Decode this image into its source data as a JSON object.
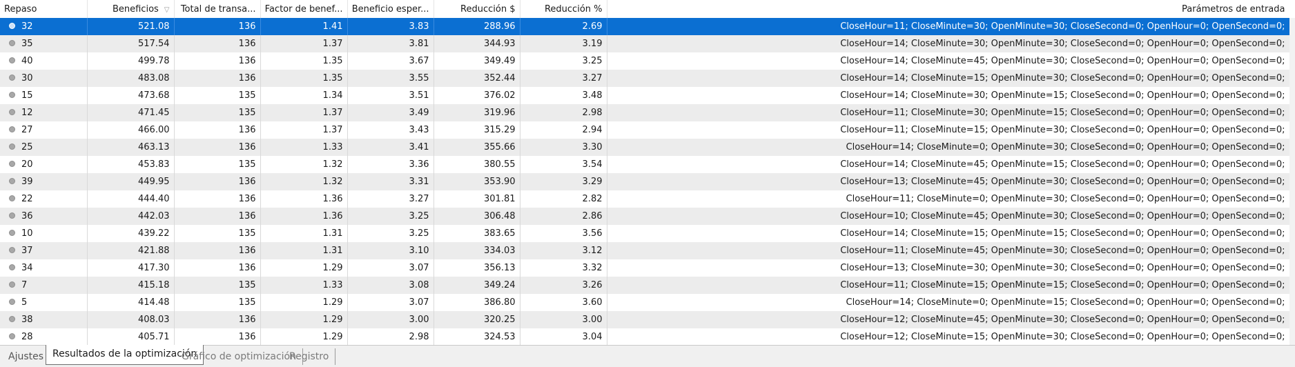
{
  "columns": [
    "Repaso",
    "Beneficios",
    "Total de transa...",
    "Factor de benef...",
    "Beneficio esper...",
    "Reducción $",
    "Reducción %",
    "Parámetros de entrada"
  ],
  "icons": {
    "sort": "sort-descending-icon",
    "row": "pass-dot-icon"
  },
  "colors": {
    "selected_row": "#0b6fd2",
    "alt_row": "#ececec"
  },
  "rows": [
    {
      "pass": "32",
      "profit": "521.08",
      "trades": "136",
      "pf": "1.41",
      "payoff": "3.83",
      "dd_abs": "288.96",
      "dd_pct": "2.69",
      "params": "CloseHour=11; CloseMinute=30; OpenMinute=30; CloseSecond=0; OpenHour=0; OpenSecond=0;",
      "selected": true
    },
    {
      "pass": "35",
      "profit": "517.54",
      "trades": "136",
      "pf": "1.37",
      "payoff": "3.81",
      "dd_abs": "344.93",
      "dd_pct": "3.19",
      "params": "CloseHour=14; CloseMinute=30; OpenMinute=30; CloseSecond=0; OpenHour=0; OpenSecond=0;"
    },
    {
      "pass": "40",
      "profit": "499.78",
      "trades": "136",
      "pf": "1.35",
      "payoff": "3.67",
      "dd_abs": "349.49",
      "dd_pct": "3.25",
      "params": "CloseHour=14; CloseMinute=45; OpenMinute=30; CloseSecond=0; OpenHour=0; OpenSecond=0;"
    },
    {
      "pass": "30",
      "profit": "483.08",
      "trades": "136",
      "pf": "1.35",
      "payoff": "3.55",
      "dd_abs": "352.44",
      "dd_pct": "3.27",
      "params": "CloseHour=14; CloseMinute=15; OpenMinute=30; CloseSecond=0; OpenHour=0; OpenSecond=0;"
    },
    {
      "pass": "15",
      "profit": "473.68",
      "trades": "135",
      "pf": "1.34",
      "payoff": "3.51",
      "dd_abs": "376.02",
      "dd_pct": "3.48",
      "params": "CloseHour=14; CloseMinute=30; OpenMinute=15; CloseSecond=0; OpenHour=0; OpenSecond=0;"
    },
    {
      "pass": "12",
      "profit": "471.45",
      "trades": "135",
      "pf": "1.37",
      "payoff": "3.49",
      "dd_abs": "319.96",
      "dd_pct": "2.98",
      "params": "CloseHour=11; CloseMinute=30; OpenMinute=15; CloseSecond=0; OpenHour=0; OpenSecond=0;"
    },
    {
      "pass": "27",
      "profit": "466.00",
      "trades": "136",
      "pf": "1.37",
      "payoff": "3.43",
      "dd_abs": "315.29",
      "dd_pct": "2.94",
      "params": "CloseHour=11; CloseMinute=15; OpenMinute=30; CloseSecond=0; OpenHour=0; OpenSecond=0;"
    },
    {
      "pass": "25",
      "profit": "463.13",
      "trades": "136",
      "pf": "1.33",
      "payoff": "3.41",
      "dd_abs": "355.66",
      "dd_pct": "3.30",
      "params": "CloseHour=14; CloseMinute=0; OpenMinute=30; CloseSecond=0; OpenHour=0; OpenSecond=0;"
    },
    {
      "pass": "20",
      "profit": "453.83",
      "trades": "135",
      "pf": "1.32",
      "payoff": "3.36",
      "dd_abs": "380.55",
      "dd_pct": "3.54",
      "params": "CloseHour=14; CloseMinute=45; OpenMinute=15; CloseSecond=0; OpenHour=0; OpenSecond=0;"
    },
    {
      "pass": "39",
      "profit": "449.95",
      "trades": "136",
      "pf": "1.32",
      "payoff": "3.31",
      "dd_abs": "353.90",
      "dd_pct": "3.29",
      "params": "CloseHour=13; CloseMinute=45; OpenMinute=30; CloseSecond=0; OpenHour=0; OpenSecond=0;"
    },
    {
      "pass": "22",
      "profit": "444.40",
      "trades": "136",
      "pf": "1.36",
      "payoff": "3.27",
      "dd_abs": "301.81",
      "dd_pct": "2.82",
      "params": "CloseHour=11; CloseMinute=0; OpenMinute=30; CloseSecond=0; OpenHour=0; OpenSecond=0;"
    },
    {
      "pass": "36",
      "profit": "442.03",
      "trades": "136",
      "pf": "1.36",
      "payoff": "3.25",
      "dd_abs": "306.48",
      "dd_pct": "2.86",
      "params": "CloseHour=10; CloseMinute=45; OpenMinute=30; CloseSecond=0; OpenHour=0; OpenSecond=0;"
    },
    {
      "pass": "10",
      "profit": "439.22",
      "trades": "135",
      "pf": "1.31",
      "payoff": "3.25",
      "dd_abs": "383.65",
      "dd_pct": "3.56",
      "params": "CloseHour=14; CloseMinute=15; OpenMinute=15; CloseSecond=0; OpenHour=0; OpenSecond=0;"
    },
    {
      "pass": "37",
      "profit": "421.88",
      "trades": "136",
      "pf": "1.31",
      "payoff": "3.10",
      "dd_abs": "334.03",
      "dd_pct": "3.12",
      "params": "CloseHour=11; CloseMinute=45; OpenMinute=30; CloseSecond=0; OpenHour=0; OpenSecond=0;"
    },
    {
      "pass": "34",
      "profit": "417.30",
      "trades": "136",
      "pf": "1.29",
      "payoff": "3.07",
      "dd_abs": "356.13",
      "dd_pct": "3.32",
      "params": "CloseHour=13; CloseMinute=30; OpenMinute=30; CloseSecond=0; OpenHour=0; OpenSecond=0;"
    },
    {
      "pass": "7",
      "profit": "415.18",
      "trades": "135",
      "pf": "1.33",
      "payoff": "3.08",
      "dd_abs": "349.24",
      "dd_pct": "3.26",
      "params": "CloseHour=11; CloseMinute=15; OpenMinute=15; CloseSecond=0; OpenHour=0; OpenSecond=0;"
    },
    {
      "pass": "5",
      "profit": "414.48",
      "trades": "135",
      "pf": "1.29",
      "payoff": "3.07",
      "dd_abs": "386.80",
      "dd_pct": "3.60",
      "params": "CloseHour=14; CloseMinute=0; OpenMinute=15; CloseSecond=0; OpenHour=0; OpenSecond=0;"
    },
    {
      "pass": "38",
      "profit": "408.03",
      "trades": "136",
      "pf": "1.29",
      "payoff": "3.00",
      "dd_abs": "320.25",
      "dd_pct": "3.00",
      "params": "CloseHour=12; CloseMinute=45; OpenMinute=30; CloseSecond=0; OpenHour=0; OpenSecond=0;"
    },
    {
      "pass": "28",
      "profit": "405.71",
      "trades": "136",
      "pf": "1.29",
      "payoff": "2.98",
      "dd_abs": "324.53",
      "dd_pct": "3.04",
      "params": "CloseHour=12; CloseMinute=15; OpenMinute=30; CloseSecond=0; OpenHour=0; OpenSecond=0;"
    }
  ],
  "tabs": [
    {
      "label": "Ajustes",
      "active": false
    },
    {
      "label": "Resultados de la optimización",
      "active": true
    },
    {
      "label": "Gráfico de optimización",
      "active": false
    },
    {
      "label": "Registro",
      "active": false
    }
  ]
}
